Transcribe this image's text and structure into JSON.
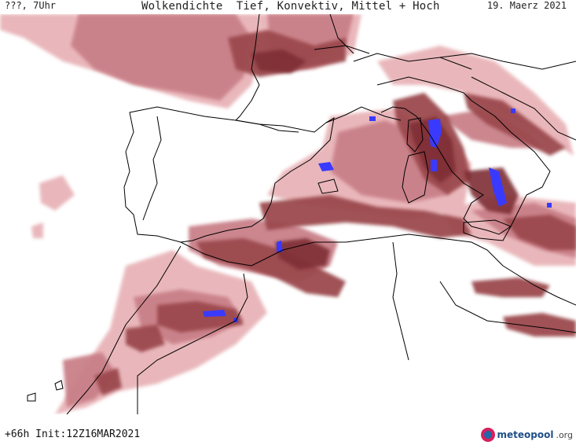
{
  "header": {
    "left_label": "???, 7Uhr",
    "title": "Wolkendichte  Tief, Konvektiv, Mittel + Hoch",
    "date": "19. Maerz 2021"
  },
  "footer": {
    "run_info": "+66h Init:12Z16MAR2021",
    "logo_main": "meteopool",
    "logo_suffix": ".org"
  },
  "colors": {
    "background": "#ffffff",
    "coast": "#000000",
    "cloud_light": "#e8b4b8",
    "cloud_mid": "#c98088",
    "cloud_dark": "#9b4a4e",
    "cloud_darkest": "#7e2e34",
    "convective": "#3a3aff"
  },
  "legend_meaning": {
    "cloud_shading": "cloud-density",
    "blue": "convective-cells"
  }
}
